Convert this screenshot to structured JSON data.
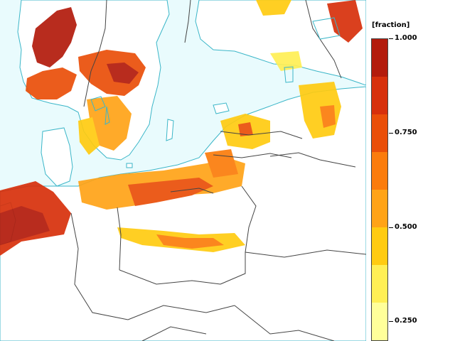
{
  "legend": {
    "title": "[fraction]",
    "tick_labels": [
      "1.000",
      "0.750",
      "0.500",
      "0.250"
    ],
    "tick_values": [
      1.0,
      0.75,
      0.5,
      0.25
    ],
    "range": [
      0.125,
      1.0
    ],
    "bin_colors": [
      "#b31b0c",
      "#d7300c",
      "#ea4f09",
      "#fb7c0c",
      "#ffa317",
      "#ffcb11",
      "#ffef55",
      "#ffff9a"
    ]
  },
  "map": {
    "sea_color": "#e9fbfd",
    "land_color": "#ffffff",
    "coast_color": "#3bb6c8",
    "border_color": "#444444"
  }
}
